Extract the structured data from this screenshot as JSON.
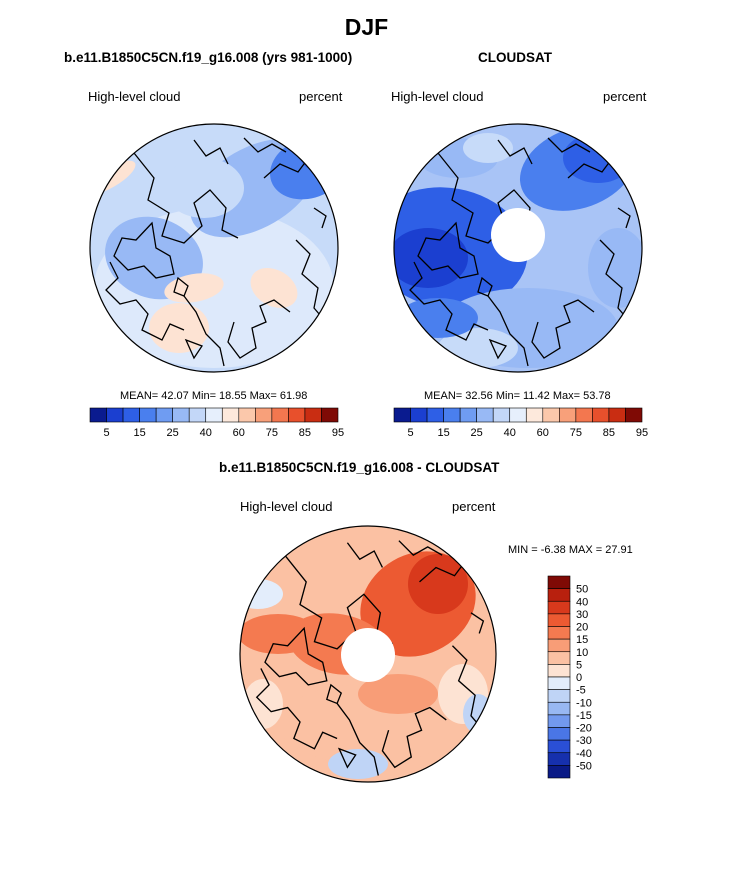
{
  "figure": {
    "title": "DJF"
  },
  "panels": {
    "model": {
      "title": "b.e11.B1850C5CN.f19_g16.008 (yrs 981-1000)",
      "left_label": "High-level cloud",
      "right_label": "percent",
      "stats": "MEAN=  42.07  Min=  18.55  Max=  61.98"
    },
    "obs": {
      "title": "CLOUDSAT",
      "left_label": "High-level cloud",
      "right_label": "percent",
      "stats": "MEAN=  32.56  Min=  11.42  Max=  53.78"
    },
    "diff": {
      "title": "b.e11.B1850C5CN.f19_g16.008 - CLOUDSAT",
      "left_label": "High-level cloud",
      "right_label": "percent",
      "stats": "MIN =  -6.38 MAX =  27.91"
    }
  },
  "chart_data": [
    {
      "type": "heatmap",
      "projection": "north-polar-stereographic",
      "title": "b.e11.B1850C5CN.f19_g16.008 (yrs 981-1000)",
      "variable": "High-level cloud",
      "units": "percent",
      "mean": 42.07,
      "min": 18.55,
      "max": 61.98,
      "colorbar_ticks": [
        "5",
        "15",
        "25",
        "40",
        "60",
        "75",
        "85",
        "95"
      ],
      "colorbar_colors": [
        "#0a1b8f",
        "#1b3fd0",
        "#2e5fe6",
        "#4a7fee",
        "#6f9cf2",
        "#98b9f5",
        "#c3d7f8",
        "#e6effc",
        "#fde9dc",
        "#fbc8ab",
        "#f8a07a",
        "#f3774f",
        "#e8502c",
        "#c92d12",
        "#7f0a05"
      ]
    },
    {
      "type": "heatmap",
      "projection": "north-polar-stereographic",
      "title": "CLOUDSAT",
      "variable": "High-level cloud",
      "units": "percent",
      "mean": 32.56,
      "min": 11.42,
      "max": 53.78,
      "colorbar_ticks": [
        "5",
        "15",
        "25",
        "40",
        "60",
        "75",
        "85",
        "95"
      ],
      "colorbar_colors": [
        "#0a1b8f",
        "#1b3fd0",
        "#2e5fe6",
        "#4a7fee",
        "#6f9cf2",
        "#98b9f5",
        "#c3d7f8",
        "#e6effc",
        "#fde9dc",
        "#fbc8ab",
        "#f8a07a",
        "#f3774f",
        "#e8502c",
        "#c92d12",
        "#7f0a05"
      ]
    },
    {
      "type": "heatmap",
      "projection": "north-polar-stereographic",
      "title": "b.e11.B1850C5CN.f19_g16.008 - CLOUDSAT",
      "variable": "High-level cloud",
      "units": "percent",
      "min": -6.38,
      "max": 27.91,
      "colorbar_ticks": [
        "50",
        "40",
        "30",
        "20",
        "15",
        "10",
        "5",
        "0",
        "-5",
        "-10",
        "-15",
        "-20",
        "-30",
        "-40",
        "-50"
      ],
      "colorbar_colors": [
        "#7f0a05",
        "#b8200e",
        "#d8391c",
        "#ec5a32",
        "#f47a50",
        "#f89d77",
        "#fbc1a3",
        "#fde3d3",
        "#e3edfb",
        "#bfd4f6",
        "#98b8f2",
        "#7299ee",
        "#4a76e6",
        "#2a4fd6",
        "#1630ad",
        "#0a1a86"
      ]
    }
  ]
}
